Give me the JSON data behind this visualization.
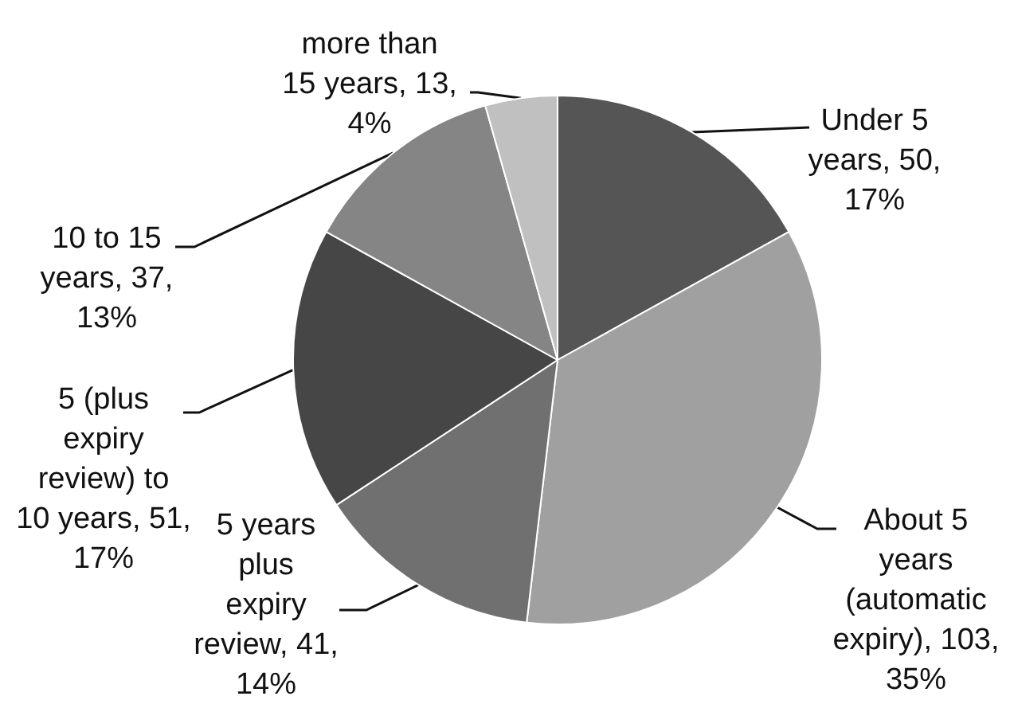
{
  "chart_data": {
    "type": "pie",
    "categories": [
      "Under 5 years",
      "About 5 years (automatic expiry)",
      "5 years plus expiry review",
      "5 (plus expiry review) to 10 years",
      "10 to 15 years",
      "more than 15 years"
    ],
    "values": [
      50,
      103,
      41,
      51,
      37,
      13
    ],
    "value_labels": [
      "50, 17%",
      "103, 35%",
      "41, 14%",
      "51, 17%",
      "37, 13%",
      "13, 4%"
    ],
    "colors": [
      "#555555",
      "#a0a0a0",
      "#707070",
      "#464646",
      "#858585",
      "#c0c0c0"
    ]
  }
}
